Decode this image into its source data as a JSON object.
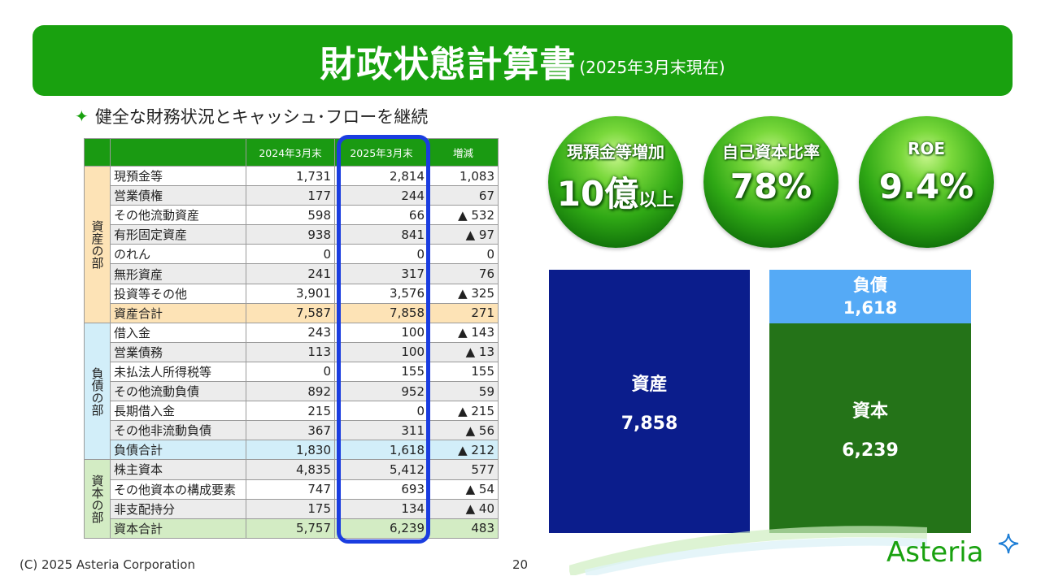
{
  "header": {
    "title": "財政状態計算書",
    "subtitle": "(2025年3月末現在)"
  },
  "bullet": {
    "icon": "sparkle-icon",
    "text": "健全な財務状況とキャッシュ･フローを継続"
  },
  "table": {
    "headers": [
      "",
      "",
      "2024年3月末",
      "2025年3月末",
      "増減"
    ],
    "sections": {
      "assets": "資産の部",
      "liabilities": "負債の部",
      "equity": "資本の部"
    },
    "rows": [
      {
        "label": "現預金等",
        "y2024": "1,731",
        "y2025": "2,814",
        "diff": "1,083"
      },
      {
        "label": "営業債権",
        "y2024": "177",
        "y2025": "244",
        "diff": "67"
      },
      {
        "label": "その他流動資産",
        "y2024": "598",
        "y2025": "66",
        "diff": "▲ 532"
      },
      {
        "label": "有形固定資産",
        "y2024": "938",
        "y2025": "841",
        "diff": "▲ 97"
      },
      {
        "label": "のれん",
        "y2024": "0",
        "y2025": "0",
        "diff": "0"
      },
      {
        "label": "無形資産",
        "y2024": "241",
        "y2025": "317",
        "diff": "76"
      },
      {
        "label": "投資等その他",
        "y2024": "3,901",
        "y2025": "3,576",
        "diff": "▲ 325"
      },
      {
        "label": "資産合計",
        "y2024": "7,587",
        "y2025": "7,858",
        "diff": "271"
      },
      {
        "label": "借入金",
        "y2024": "243",
        "y2025": "100",
        "diff": "▲ 143"
      },
      {
        "label": "営業債務",
        "y2024": "113",
        "y2025": "100",
        "diff": "▲ 13"
      },
      {
        "label": "未払法人所得税等",
        "y2024": "0",
        "y2025": "155",
        "diff": "155"
      },
      {
        "label": "その他流動負債",
        "y2024": "892",
        "y2025": "952",
        "diff": "59"
      },
      {
        "label": "長期借入金",
        "y2024": "215",
        "y2025": "0",
        "diff": "▲ 215"
      },
      {
        "label": "その他非流動負債",
        "y2024": "367",
        "y2025": "311",
        "diff": "▲ 56"
      },
      {
        "label": "負債合計",
        "y2024": "1,830",
        "y2025": "1,618",
        "diff": "▲ 212"
      },
      {
        "label": "株主資本",
        "y2024": "4,835",
        "y2025": "5,412",
        "diff": "577"
      },
      {
        "label": "その他資本の構成要素",
        "y2024": "747",
        "y2025": "693",
        "diff": "▲ 54"
      },
      {
        "label": "非支配持分",
        "y2024": "175",
        "y2025": "134",
        "diff": "▲ 40"
      },
      {
        "label": "資本合計",
        "y2024": "5,757",
        "y2025": "6,239",
        "diff": "483"
      }
    ]
  },
  "highlights": [
    {
      "title": "現預金等増加",
      "value": "10億",
      "suffix": "以上"
    },
    {
      "title": "自己資本比率",
      "value": "78%",
      "suffix": ""
    },
    {
      "title": "ROE",
      "value": "9.4%",
      "suffix": ""
    }
  ],
  "balance_boxes": {
    "assets_label": "資産",
    "assets_value": "7,858",
    "liabilities_label": "負債",
    "liabilities_value": "1,618",
    "equity_label": "資本",
    "equity_value": "6,239"
  },
  "footer": {
    "copyright": "(C) 2025 Asteria Corporation",
    "page": "20",
    "logo": "Asteria"
  },
  "colors": {
    "brand_green": "#19a10f",
    "highlight_blue": "#1a3de0",
    "assets_navy": "#0b1d8c",
    "liabilities_blue": "#55aaf6",
    "equity_green": "#247318"
  }
}
